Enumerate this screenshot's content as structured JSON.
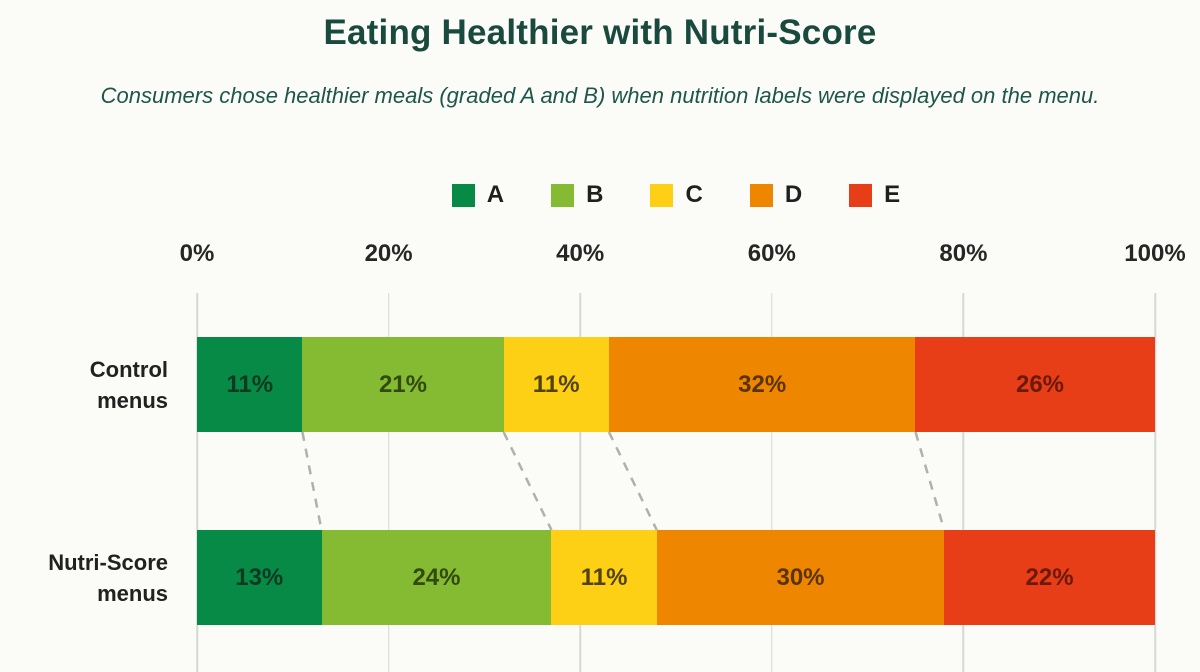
{
  "title": "Eating Healthier with Nutri-Score",
  "subtitle": "Consumers chose healthier meals (graded A and B) when nutrition labels were displayed on the menu.",
  "colors": {
    "background": "#fbfbf8",
    "title_text": "#1a493e",
    "subtitle_text": "#1e564b",
    "axis_text": "#262626",
    "gridline": "#d7d7d7",
    "connector": "#b0b0b0"
  },
  "chart_data": {
    "type": "bar",
    "stacked": true,
    "orientation": "horizontal",
    "grid": true,
    "legend_position": "top",
    "xlim": [
      0,
      100
    ],
    "x_ticks": [
      "0%",
      "20%",
      "40%",
      "60%",
      "80%",
      "100%"
    ],
    "value_suffix": "%",
    "categories": [
      "Control\nmenus",
      "Nutri-Score\nmenus"
    ],
    "series": [
      {
        "name": "A",
        "color": "#078a45",
        "label_color": "#0e3a21",
        "values": [
          11,
          13
        ]
      },
      {
        "name": "B",
        "color": "#85bb33",
        "label_color": "#32490f",
        "values": [
          21,
          24
        ]
      },
      {
        "name": "C",
        "color": "#fdd016",
        "label_color": "#514208",
        "values": [
          11,
          11
        ]
      },
      {
        "name": "D",
        "color": "#ef8600",
        "label_color": "#5b3306",
        "values": [
          32,
          30
        ]
      },
      {
        "name": "E",
        "color": "#e73e17",
        "label_color": "#6b190b",
        "values": [
          26,
          22
        ]
      }
    ]
  }
}
